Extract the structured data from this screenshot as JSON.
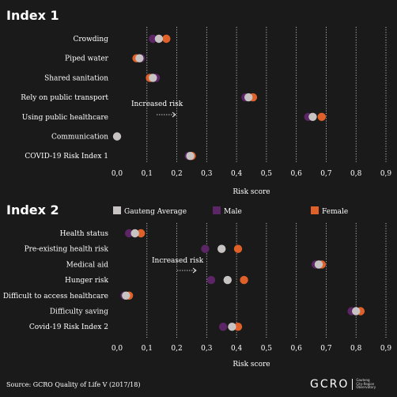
{
  "colors": {
    "background": "#1a1a1a",
    "gauteng_average": "#c8c3c3",
    "male": "#5c2566",
    "female": "#e0602a",
    "gridline": "#ffffff",
    "text": "#ffffff"
  },
  "legend": {
    "items": [
      {
        "label": "Gauteng Average",
        "color": "#c8c3c3"
      },
      {
        "label": "Male",
        "color": "#5c2566"
      },
      {
        "label": "Female",
        "color": "#e0602a"
      }
    ]
  },
  "source_text": "Source: GCRO Quality of Life V (2017/18)",
  "logo": {
    "name": "GCRO",
    "subtitle_lines": [
      "Gauteng",
      "City-Region",
      "Observatory"
    ]
  },
  "chart_data": [
    {
      "type": "dot-plot",
      "title": "Index 1",
      "xlabel": "Risk score",
      "xlim": [
        0,
        0.9
      ],
      "xticks": [
        "0,0",
        "0,1",
        "0,2",
        "0,3",
        "0,4",
        "0,5",
        "0,6",
        "0,7",
        "0,8",
        "0,9"
      ],
      "xtick_values": [
        0,
        0.1,
        0.2,
        0.3,
        0.4,
        0.5,
        0.6,
        0.7,
        0.8,
        0.9
      ],
      "grid": "vertical dotted",
      "annotation": "Increased risk",
      "categories": [
        "Crowding",
        "Piped water",
        "Shared sanitation",
        "Rely on public transport",
        "Using public healthcare",
        "Communication",
        "COVID-19 Risk Index 1"
      ],
      "series": [
        {
          "name": "Male",
          "values": [
            0.12,
            0.08,
            0.13,
            0.43,
            0.64,
            null,
            0.24
          ]
        },
        {
          "name": "Gauteng Average",
          "values": [
            0.14,
            0.075,
            0.12,
            0.44,
            0.655,
            0.0,
            0.245
          ]
        },
        {
          "name": "Female",
          "values": [
            0.165,
            0.065,
            0.11,
            0.455,
            0.685,
            null,
            0.25
          ]
        }
      ]
    },
    {
      "type": "dot-plot",
      "title": "Index 2",
      "xlabel": "Risk score",
      "xlim": [
        0,
        0.9
      ],
      "xticks": [
        "0,0",
        "0,1",
        "0,2",
        "0,3",
        "0,4",
        "0,5",
        "0,6",
        "0,7",
        "0,8",
        "0,9"
      ],
      "xtick_values": [
        0,
        0.1,
        0.2,
        0.3,
        0.4,
        0.5,
        0.6,
        0.7,
        0.8,
        0.9
      ],
      "grid": "vertical dotted",
      "annotation": "Increased risk",
      "categories": [
        "Health status",
        "Pre-existing health risk",
        "Medical aid",
        "Hunger risk",
        "Difficult to access healthcare",
        "Difficulty saving",
        "Covid-19 Risk Index 2"
      ],
      "series": [
        {
          "name": "Male",
          "values": [
            0.04,
            0.295,
            0.665,
            0.315,
            0.025,
            0.785,
            0.355
          ]
        },
        {
          "name": "Gauteng Average",
          "values": [
            0.06,
            0.35,
            0.675,
            0.37,
            0.03,
            0.8,
            0.385
          ]
        },
        {
          "name": "Female",
          "values": [
            0.08,
            0.405,
            0.685,
            0.425,
            0.04,
            0.815,
            0.405
          ]
        }
      ]
    }
  ]
}
